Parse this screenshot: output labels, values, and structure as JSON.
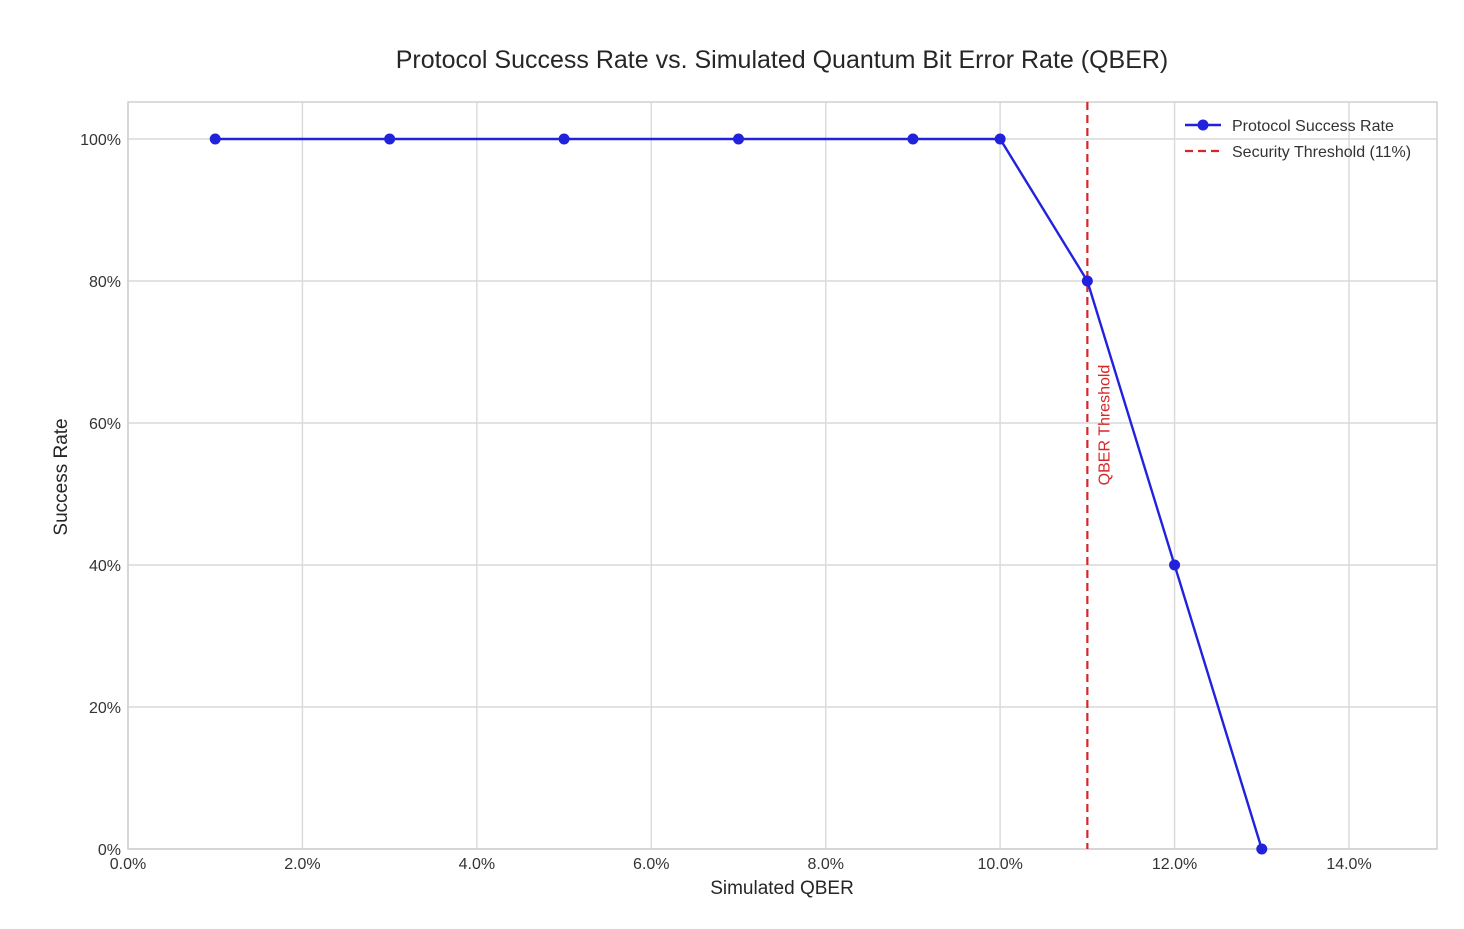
{
  "chart_data": {
    "type": "line",
    "title": "Protocol Success Rate vs. Simulated Quantum Bit Error Rate (QBER)",
    "xlabel": "Simulated QBER",
    "ylabel": "Success Rate",
    "xlim": [
      0,
      0.15
    ],
    "ylim": [
      0,
      1.05
    ],
    "x_ticks": [
      "0.0%",
      "2.0%",
      "4.0%",
      "6.0%",
      "8.0%",
      "10.0%",
      "12.0%",
      "14.0%"
    ],
    "x_tick_values": [
      0,
      0.02,
      0.04,
      0.06,
      0.08,
      0.1,
      0.12,
      0.14
    ],
    "y_ticks": [
      "0%",
      "20%",
      "40%",
      "60%",
      "80%",
      "100%"
    ],
    "y_tick_values": [
      0,
      0.2,
      0.4,
      0.6,
      0.8,
      1.0
    ],
    "grid": true,
    "legend_position": "upper right",
    "series": [
      {
        "name": "Protocol Success Rate",
        "color": "#2222dd",
        "marker": "circle",
        "x": [
          0.01,
          0.03,
          0.05,
          0.07,
          0.09,
          0.1,
          0.11,
          0.12,
          0.13
        ],
        "values": [
          1.0,
          1.0,
          1.0,
          1.0,
          1.0,
          1.0,
          0.8,
          0.4,
          0.0
        ]
      }
    ],
    "reference_lines": [
      {
        "name": "Security Threshold (11%)",
        "orientation": "vertical",
        "x": 0.11,
        "color": "#d62728",
        "style": "dashed",
        "annotation": "QBER Threshold"
      }
    ]
  },
  "legend": {
    "items": [
      {
        "label": "Protocol Success Rate",
        "color": "#2222dd",
        "style": "line-marker"
      },
      {
        "label": "Security Threshold (11%)",
        "color": "#d62728",
        "style": "dashed"
      }
    ]
  }
}
